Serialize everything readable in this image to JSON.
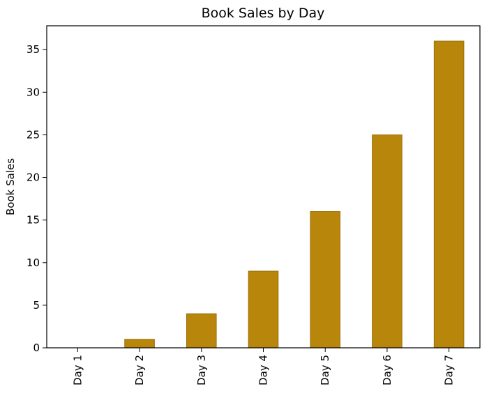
{
  "chart_data": {
    "type": "bar",
    "title": "Book Sales by Day",
    "xlabel": "",
    "ylabel": "Book Sales",
    "categories": [
      "Day 1",
      "Day 2",
      "Day 3",
      "Day 4",
      "Day 5",
      "Day 6",
      "Day 7"
    ],
    "values": [
      0,
      1,
      4,
      9,
      16,
      25,
      36
    ],
    "ylim": [
      0,
      37.8
    ],
    "yticks": [
      0,
      5,
      10,
      15,
      20,
      25,
      30,
      35
    ],
    "grid": false,
    "colors": {
      "bar_fill": "#b8860b",
      "bar_edge": "#9a6f08"
    }
  }
}
